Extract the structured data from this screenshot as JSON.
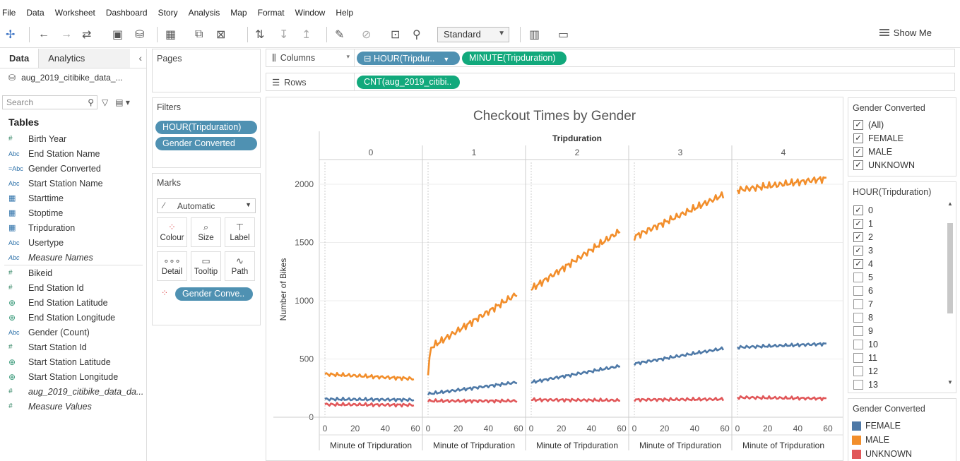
{
  "menu": [
    "File",
    "Data",
    "Worksheet",
    "Dashboard",
    "Story",
    "Analysis",
    "Map",
    "Format",
    "Window",
    "Help"
  ],
  "toolbar": {
    "marks_style": "Standard",
    "show_me": "Show Me"
  },
  "left": {
    "tab_data": "Data",
    "tab_analytics": "Analytics",
    "datasource": "aug_2019_citibike_data_...",
    "search_placeholder": "Search",
    "tables_heading": "Tables",
    "dimensions": [
      {
        "icon": "#",
        "label": "Birth Year"
      },
      {
        "icon": "Abc",
        "label": "End Station Name"
      },
      {
        "icon": "=Abc",
        "label": "Gender Converted"
      },
      {
        "icon": "Abc",
        "label": "Start Station Name"
      },
      {
        "icon": "dt",
        "label": "Starttime"
      },
      {
        "icon": "dt",
        "label": "Stoptime"
      },
      {
        "icon": "dt",
        "label": "Tripduration"
      },
      {
        "icon": "Abc",
        "label": "Usertype"
      },
      {
        "icon": "Abc",
        "label": "Measure Names",
        "italic": true
      }
    ],
    "measures": [
      {
        "icon": "#",
        "label": "Bikeid"
      },
      {
        "icon": "#",
        "label": "End Station Id"
      },
      {
        "icon": "glb",
        "label": "End Station Latitude"
      },
      {
        "icon": "glb",
        "label": "End Station Longitude"
      },
      {
        "icon": "Abc",
        "label": "Gender (Count)"
      },
      {
        "icon": "#",
        "label": "Start Station Id"
      },
      {
        "icon": "glb",
        "label": "Start Station Latitude"
      },
      {
        "icon": "glb",
        "label": "Start Station Longitude"
      },
      {
        "icon": "#",
        "label": "aug_2019_citibike_data_da...",
        "italic": true
      },
      {
        "icon": "#",
        "label": "Measure Values",
        "italic": true
      }
    ]
  },
  "pages": {
    "title": "Pages"
  },
  "filters": {
    "title": "Filters",
    "pills": [
      "HOUR(Tripduration)",
      "Gender Converted"
    ]
  },
  "marks": {
    "title": "Marks",
    "type": "Automatic",
    "buttons": [
      "Colour",
      "Size",
      "Label",
      "Detail",
      "Tooltip",
      "Path"
    ],
    "color_pill": "Gender Conve.."
  },
  "shelves": {
    "columns_label": "Columns",
    "columns_pills": [
      "HOUR(Tripdur..",
      "MINUTE(Tripduration)"
    ],
    "rows_label": "Rows",
    "rows_pills": [
      "CNT(aug_2019_citibi.."
    ]
  },
  "chart_data": {
    "type": "line",
    "title": "Checkout Times by Gender",
    "panel_header": "Tripduration",
    "panels": [
      "0",
      "1",
      "2",
      "3",
      "4"
    ],
    "xlabel": "Minute of Tripduration",
    "x_ticks": [
      0,
      20,
      40,
      60
    ],
    "ylabel": "Number of Bikes",
    "y_ticks": [
      0,
      500,
      1000,
      1500,
      2000
    ],
    "ylim": [
      0,
      2200
    ],
    "series": [
      {
        "name": "FEMALE",
        "color": "#4e79a7",
        "panels": [
          [
            [
              0,
              155
            ],
            [
              59,
              150
            ]
          ],
          [
            [
              0,
              200
            ],
            [
              59,
              300
            ]
          ],
          [
            [
              0,
              300
            ],
            [
              59,
              440
            ]
          ],
          [
            [
              0,
              460
            ],
            [
              59,
              590
            ]
          ],
          [
            [
              0,
              600
            ],
            [
              59,
              630
            ]
          ]
        ]
      },
      {
        "name": "MALE",
        "color": "#f28e2b",
        "panels": [
          [
            [
              0,
              370
            ],
            [
              59,
              330
            ]
          ],
          [
            [
              0,
              380
            ],
            [
              2,
              600
            ],
            [
              59,
              1060
            ]
          ],
          [
            [
              0,
              1100
            ],
            [
              59,
              1600
            ]
          ],
          [
            [
              0,
              1550
            ],
            [
              59,
              1910
            ]
          ],
          [
            [
              0,
              1950
            ],
            [
              59,
              2050
            ]
          ]
        ]
      },
      {
        "name": "UNKNOWN",
        "color": "#e15759",
        "panels": [
          [
            [
              0,
              110
            ],
            [
              59,
              105
            ]
          ],
          [
            [
              0,
              140
            ],
            [
              59,
              140
            ]
          ],
          [
            [
              0,
              150
            ],
            [
              59,
              145
            ]
          ],
          [
            [
              0,
              150
            ],
            [
              59,
              155
            ]
          ],
          [
            [
              0,
              170
            ],
            [
              59,
              160
            ]
          ]
        ]
      }
    ]
  },
  "legend_filter": {
    "title": "Gender Converted",
    "items": [
      "(All)",
      "FEMALE",
      "MALE",
      "UNKNOWN"
    ]
  },
  "hour_filter": {
    "title": "HOUR(Tripduration)",
    "items": [
      {
        "label": "0",
        "checked": true
      },
      {
        "label": "1",
        "checked": true
      },
      {
        "label": "2",
        "checked": true
      },
      {
        "label": "3",
        "checked": true
      },
      {
        "label": "4",
        "checked": true
      },
      {
        "label": "5",
        "checked": false
      },
      {
        "label": "6",
        "checked": false
      },
      {
        "label": "7",
        "checked": false
      },
      {
        "label": "8",
        "checked": false
      },
      {
        "label": "9",
        "checked": false
      },
      {
        "label": "10",
        "checked": false
      },
      {
        "label": "11",
        "checked": false
      },
      {
        "label": "12",
        "checked": false
      },
      {
        "label": "13",
        "checked": false
      }
    ]
  },
  "color_legend": {
    "title": "Gender Converted",
    "items": [
      {
        "label": "FEMALE",
        "color": "#4e79a7"
      },
      {
        "label": "MALE",
        "color": "#f28e2b"
      },
      {
        "label": "UNKNOWN",
        "color": "#e15759"
      }
    ]
  }
}
